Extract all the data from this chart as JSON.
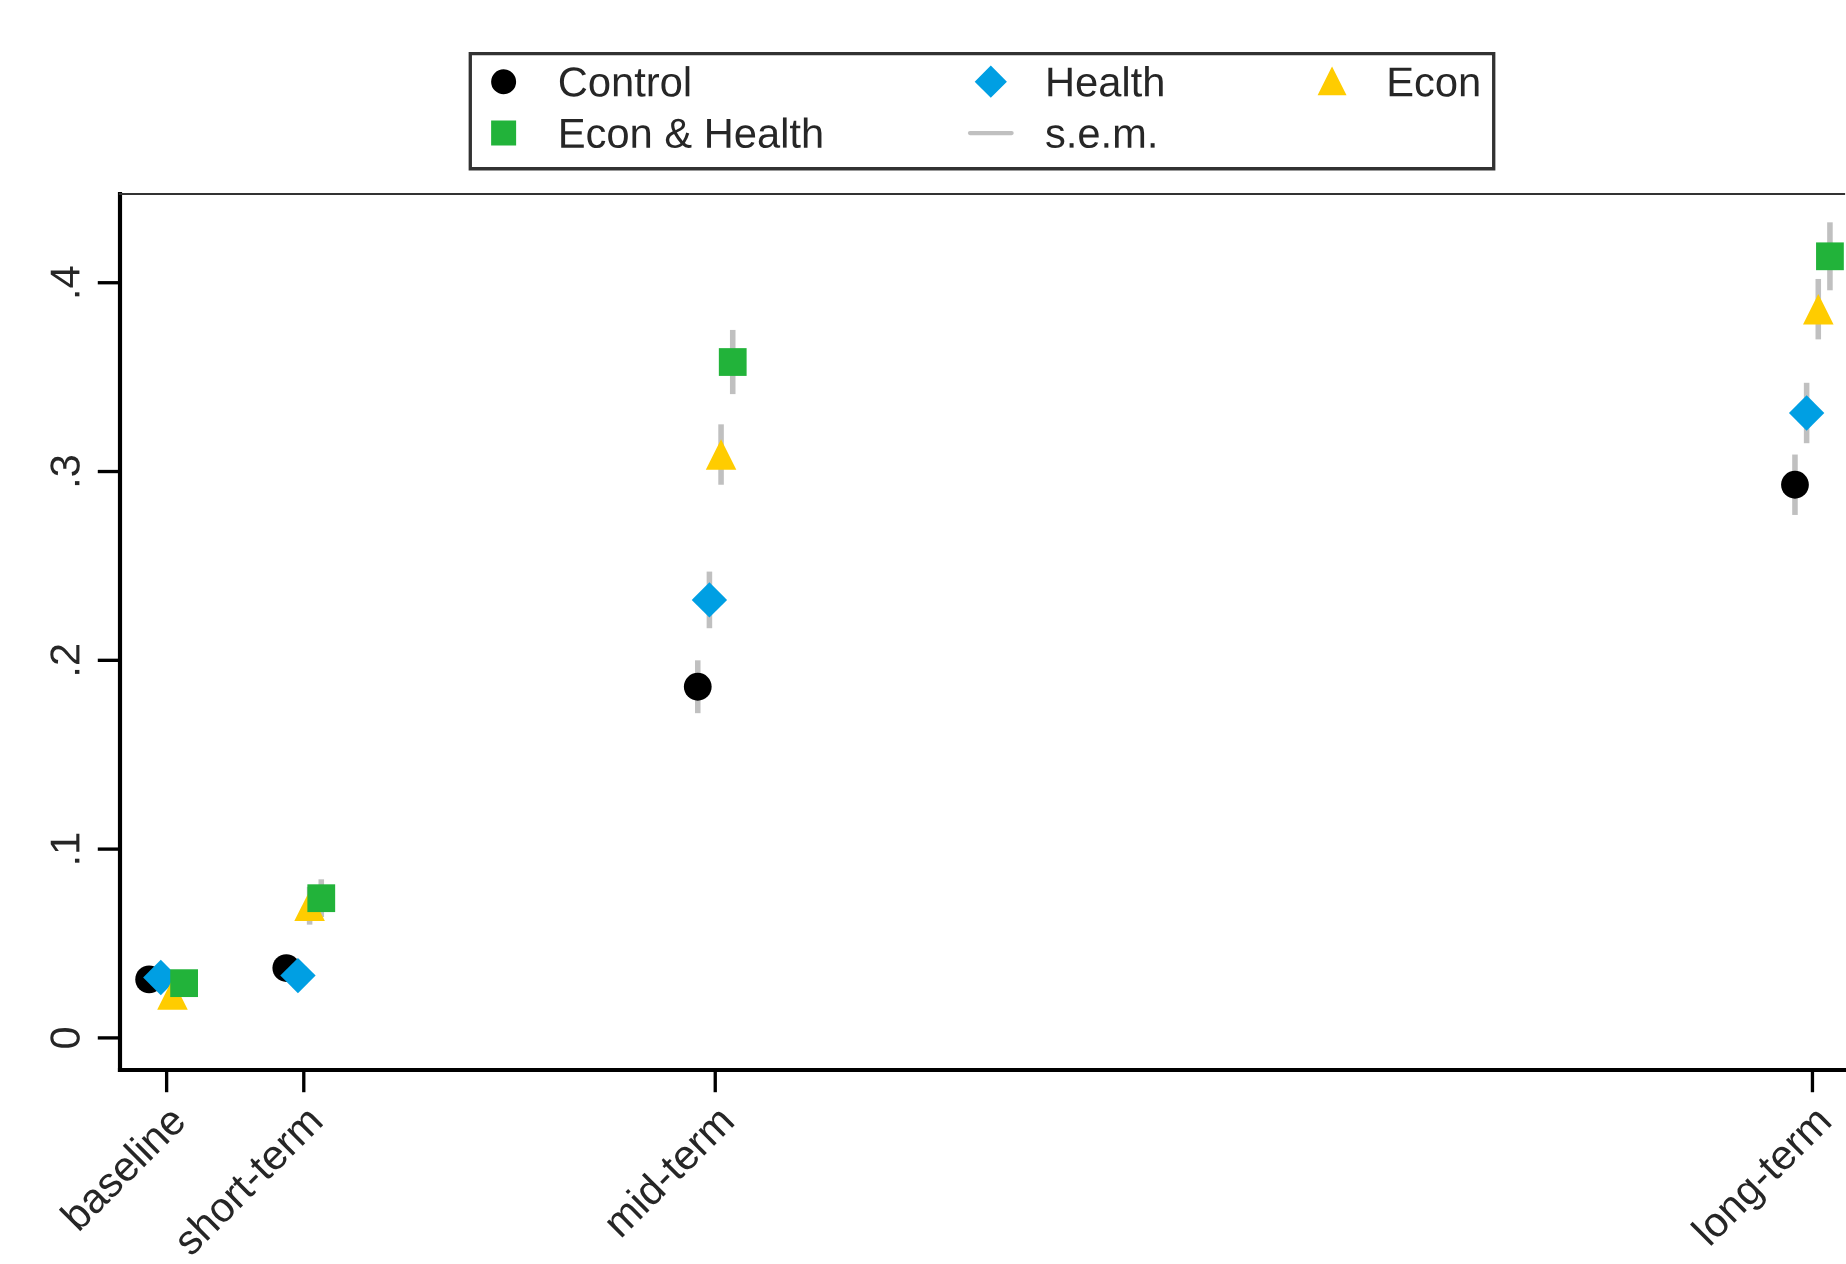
{
  "chart_data": {
    "type": "scatter",
    "categories": [
      "baseline",
      "short-term",
      null,
      null,
      "mid-term",
      null,
      null,
      null,
      null,
      null,
      null,
      null,
      "long-term"
    ],
    "series": [
      {
        "name": "Control",
        "color": "#000000",
        "marker": "circle",
        "values": [
          0.031,
          0.037,
          null,
          null,
          0.186,
          null,
          null,
          null,
          null,
          null,
          null,
          null,
          0.293
        ],
        "errors": [
          0.004,
          null,
          null,
          null,
          0.014,
          null,
          null,
          null,
          null,
          null,
          null,
          null,
          0.016
        ]
      },
      {
        "name": "Health",
        "color": "#009fe3",
        "marker": "diamond",
        "values": [
          0.032,
          0.033,
          null,
          null,
          0.232,
          null,
          null,
          null,
          null,
          null,
          null,
          null,
          0.331
        ],
        "errors": [
          0.004,
          null,
          null,
          null,
          0.015,
          null,
          null,
          null,
          null,
          null,
          null,
          null,
          0.016
        ]
      },
      {
        "name": "Econ",
        "color": "#ffcc00",
        "marker": "triangle",
        "values": [
          0.023,
          0.07,
          null,
          null,
          0.309,
          null,
          null,
          null,
          null,
          null,
          null,
          null,
          0.386
        ],
        "errors": [
          null,
          0.01,
          null,
          null,
          0.016,
          null,
          null,
          null,
          null,
          null,
          null,
          null,
          0.016
        ]
      },
      {
        "name": "Econ & Health",
        "color": "#22b33a",
        "marker": "square",
        "values": [
          0.029,
          0.074,
          null,
          null,
          0.358,
          null,
          null,
          null,
          null,
          null,
          null,
          null,
          0.414
        ],
        "errors": [
          null,
          0.01,
          null,
          null,
          0.017,
          null,
          null,
          null,
          null,
          null,
          null,
          null,
          0.018
        ]
      }
    ],
    "annotations": [
      "s.e.m."
    ],
    "ylim": [
      -0.017,
      0.447
    ],
    "yticks": [
      {
        "value": 0,
        "label": "0"
      },
      {
        "value": 0.1,
        "label": ".1"
      },
      {
        "value": 0.2,
        "label": ".2"
      },
      {
        "value": 0.3,
        "label": ".3"
      },
      {
        "value": 0.4,
        "label": ".4"
      }
    ],
    "grid": false,
    "legend": "top"
  }
}
